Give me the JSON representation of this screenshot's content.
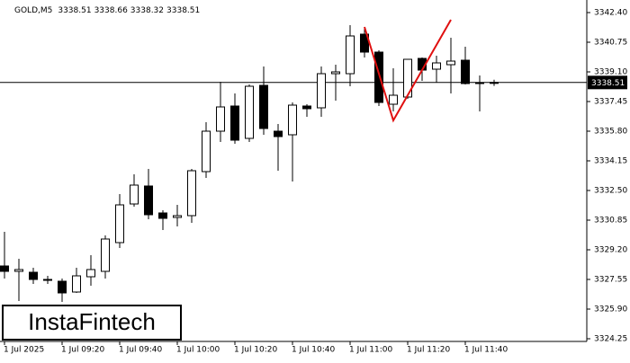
{
  "chart_data": {
    "type": "candlestick",
    "title": "GOLD,M5",
    "ohlc_header": [
      3338.51,
      3338.66,
      3338.32,
      3338.51
    ],
    "categories": [
      "1 Jul 2025",
      null,
      null,
      null,
      "1 Jul 09:20",
      null,
      null,
      null,
      "1 Jul 09:40",
      null,
      null,
      null,
      "1 Jul 10:00",
      null,
      null,
      null,
      "1 Jul 10:20",
      null,
      null,
      null,
      "1 Jul 10:40",
      null,
      null,
      null,
      "1 Jul 11:00",
      null,
      null,
      null,
      "1 Jul 11:20",
      null,
      null,
      null,
      "1 Jul 11:40",
      null,
      null
    ],
    "open": [
      3328.3,
      3328.0,
      3327.95,
      3327.55,
      3327.45,
      3326.85,
      3327.7,
      3328.0,
      3329.6,
      3331.75,
      3332.75,
      3331.25,
      3331.0,
      3331.1,
      3333.55,
      3335.8,
      3337.2,
      3335.4,
      3338.35,
      3335.8,
      3335.6,
      3337.2,
      3337.1,
      3339.0,
      3339.0,
      3341.2,
      3340.2,
      3337.3,
      3337.7,
      3339.85,
      3339.25,
      3339.5,
      3339.75,
      3338.5,
      3338.51
    ],
    "high": [
      3330.2,
      3328.7,
      3328.2,
      3327.75,
      3327.6,
      3328.2,
      3328.9,
      3330.0,
      3332.3,
      3333.4,
      3333.7,
      3331.4,
      3331.7,
      3333.7,
      3336.3,
      3338.55,
      3337.9,
      3338.4,
      3339.4,
      3336.2,
      3337.4,
      3337.3,
      3339.4,
      3339.5,
      3341.7,
      3341.6,
      3340.3,
      3339.3,
      3339.8,
      3339.9,
      3340.0,
      3341.0,
      3340.5,
      3338.9,
      3338.66
    ],
    "low": [
      3327.6,
      3326.35,
      3327.3,
      3327.3,
      3326.3,
      3326.8,
      3327.2,
      3327.6,
      3329.3,
      3331.6,
      3330.9,
      3330.3,
      3330.5,
      3330.7,
      3333.2,
      3335.2,
      3335.1,
      3335.2,
      3335.6,
      3333.6,
      3333.0,
      3336.6,
      3336.6,
      3337.5,
      3338.3,
      3339.9,
      3337.2,
      3336.9,
      3337.6,
      3338.6,
      3338.5,
      3337.9,
      3338.4,
      3336.9,
      3338.32
    ],
    "close": [
      3328.0,
      3328.1,
      3327.55,
      3327.5,
      3326.8,
      3327.75,
      3328.1,
      3329.8,
      3331.7,
      3332.8,
      3331.15,
      3330.95,
      3331.1,
      3333.6,
      3335.8,
      3337.15,
      3335.3,
      3338.3,
      3335.95,
      3335.5,
      3337.25,
      3337.05,
      3339.0,
      3339.1,
      3341.1,
      3340.2,
      3337.4,
      3337.8,
      3339.8,
      3339.2,
      3339.6,
      3339.7,
      3338.45,
      3338.5,
      3338.51
    ],
    "last_price": 3338.51,
    "pattern": {
      "color": "#e01010",
      "points": [
        {
          "index": 25,
          "value": 3341.6
        },
        {
          "index": 27,
          "value": 3336.4
        },
        {
          "index": 31,
          "value": 3342.0
        }
      ]
    },
    "ylim": [
      3324.1,
      3343.1
    ],
    "yticks": [
      {
        "value": 3342.4,
        "label": "3342.40"
      },
      3340.75,
      {
        "value": 3339.1,
        "label": "3339.10"
      },
      3337.45,
      {
        "value": 3335.8,
        "label": "3335.80"
      },
      3334.15,
      {
        "value": 3332.5,
        "label": "3332.50"
      },
      3330.85,
      {
        "value": 3329.2,
        "label": "3329.20"
      },
      3327.55,
      {
        "value": 3325.9,
        "label": "3325.90"
      },
      3324.25
    ]
  },
  "logo": "InstaFintech"
}
